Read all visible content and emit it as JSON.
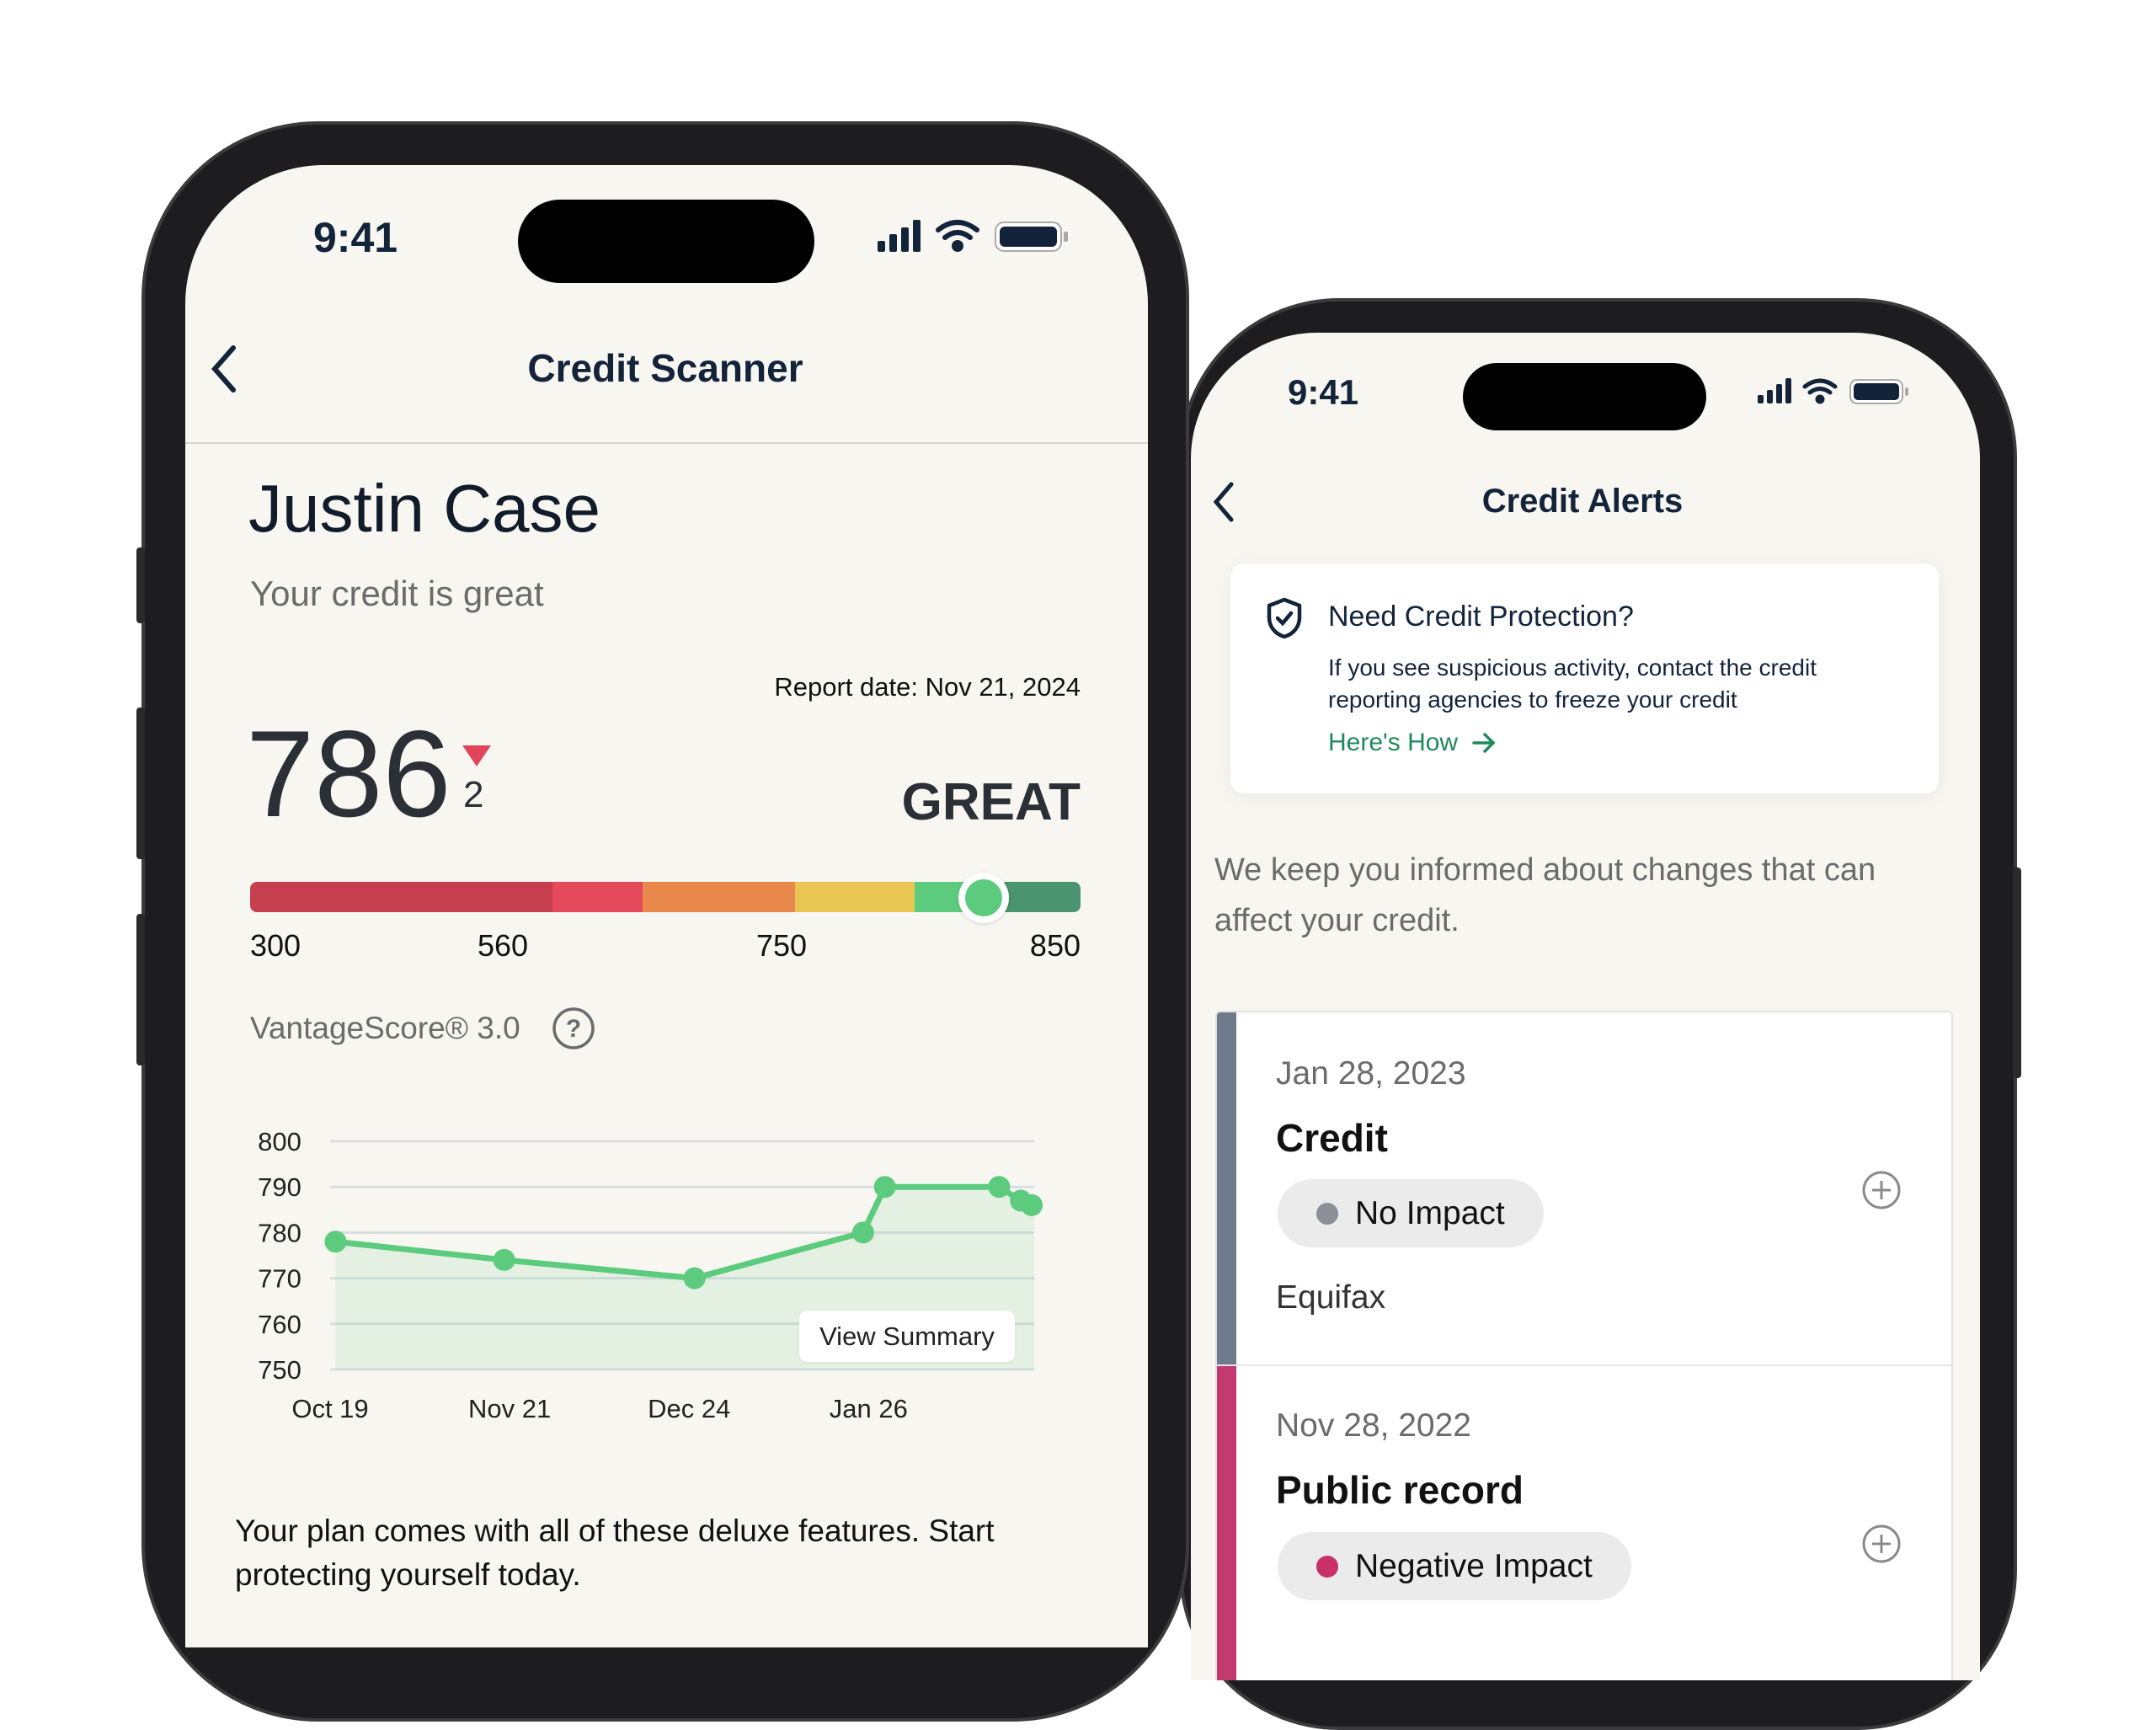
{
  "left_phone": {
    "status": {
      "time": "9:41"
    },
    "header": {
      "title": "Credit Scanner"
    },
    "user_name": "Justin Case",
    "credit_summary": "Your credit is great",
    "report_date": "Report date: Nov 21, 2024",
    "score": {
      "value": "786",
      "change": "2",
      "change_direction": "down",
      "rating": "GREAT",
      "model": "VantageScore® 3.0"
    },
    "score_bar": {
      "min": 300,
      "max": 850,
      "value": 786,
      "labels": [
        "300",
        "560",
        "750",
        "850"
      ],
      "segments": [
        {
          "from": 300,
          "to": 500,
          "color": "#c63f4f"
        },
        {
          "from": 500,
          "to": 560,
          "color": "#e44a5c"
        },
        {
          "from": 560,
          "to": 661,
          "color": "#e8894b"
        },
        {
          "from": 661,
          "to": 740,
          "color": "#e9c553"
        },
        {
          "from": 740,
          "to": 800,
          "color": "#5ccb7e"
        },
        {
          "from": 800,
          "to": 850,
          "color": "#4b9470"
        }
      ]
    },
    "view_summary": "View Summary",
    "plan_text": "Your plan comes with all of these deluxe features. Start protecting yourself today."
  },
  "chart_data": {
    "type": "area",
    "title": "",
    "xlabel": "",
    "ylabel": "",
    "ylim": [
      750,
      800
    ],
    "yticks": [
      "800",
      "790",
      "780",
      "770",
      "760",
      "750"
    ],
    "xticks": [
      "Oct 19",
      "Nov 21",
      "Dec 24",
      "Jan 26"
    ],
    "grid": true,
    "color": "#5ccb7e",
    "points": [
      {
        "x": "Oct 20",
        "y": 778
      },
      {
        "x": "Nov 20",
        "y": 774
      },
      {
        "x": "Dec 25",
        "y": 770
      },
      {
        "x": "Jan 25",
        "y": 780
      },
      {
        "x": "Jan 29",
        "y": 790
      },
      {
        "x": "Feb 19",
        "y": 790
      },
      {
        "x": "Feb 23",
        "y": 787
      },
      {
        "x": "Feb 25",
        "y": 786
      }
    ]
  },
  "right_phone": {
    "status": {
      "time": "9:41"
    },
    "header": {
      "title": "Credit Alerts"
    },
    "protection_card": {
      "title": "Need Credit Protection?",
      "body_line1": "If you see suspicious activity, contact the credit",
      "body_line2": "reporting agencies to freeze your credit",
      "link": "Here's How"
    },
    "intro_line1": "We keep you informed about changes that can",
    "intro_line2": "affect your credit.",
    "alerts": [
      {
        "date": "Jan 28, 2023",
        "type": "Credit",
        "impact": "No Impact",
        "impact_color": "#8a8f98",
        "bar_color": "#6f7b8a",
        "bureau": "Equifax"
      },
      {
        "date": "Nov 28, 2022",
        "type": "Public record",
        "impact": "Negative Impact",
        "impact_color": "#c9306a",
        "bar_color": "#c23a6e"
      }
    ]
  }
}
